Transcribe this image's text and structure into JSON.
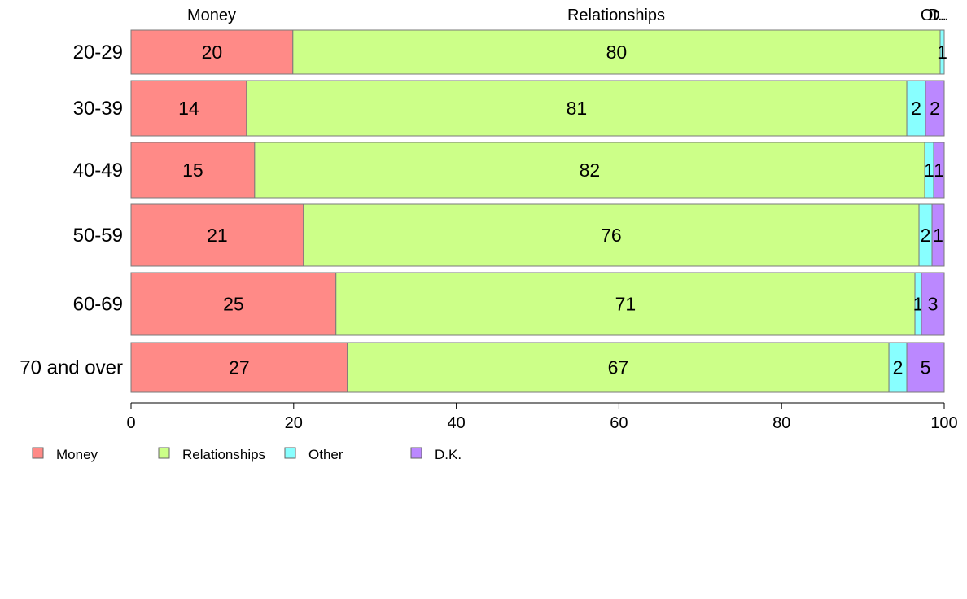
{
  "chart_data": {
    "type": "bar",
    "orientation": "horizontal",
    "stacked": true,
    "categories": [
      "20-29",
      "30-39",
      "40-49",
      "50-59",
      "60-69",
      "70 and over"
    ],
    "series": [
      {
        "name": "Money",
        "color": "#ff8a87",
        "values": [
          19.9,
          14.2,
          15.2,
          21.2,
          25.2,
          26.6
        ],
        "labels": [
          "20",
          "14",
          "15",
          "21",
          "25",
          "27"
        ]
      },
      {
        "name": "Relationships",
        "color": "#ccff88",
        "values": [
          79.6,
          81.2,
          82.4,
          75.7,
          71.2,
          66.6
        ],
        "labels": [
          "80",
          "81",
          "82",
          "76",
          "71",
          "67"
        ]
      },
      {
        "name": "Other",
        "color": "#88ffff",
        "values": [
          0.5,
          2.3,
          1.1,
          1.6,
          0.8,
          2.2
        ],
        "labels": [
          "1",
          "2",
          "1",
          "2",
          "1",
          "2"
        ]
      },
      {
        "name": "D.K.",
        "color": "#bb88ff",
        "values": [
          0.0,
          2.3,
          1.3,
          1.5,
          2.8,
          4.6
        ],
        "labels": [
          "",
          "2",
          "1",
          "1",
          "3",
          "5"
        ]
      }
    ],
    "top_labels": [
      "Money",
      "Relationships",
      "Ot..",
      "D.."
    ],
    "xlim": [
      0,
      100
    ],
    "xticks": [
      "0",
      "20",
      "40",
      "60",
      "80",
      "100"
    ],
    "legend": {
      "position": "bottom-left",
      "entries": [
        "Money",
        "Relationships",
        "Other",
        "D.K."
      ]
    },
    "grid": false
  }
}
